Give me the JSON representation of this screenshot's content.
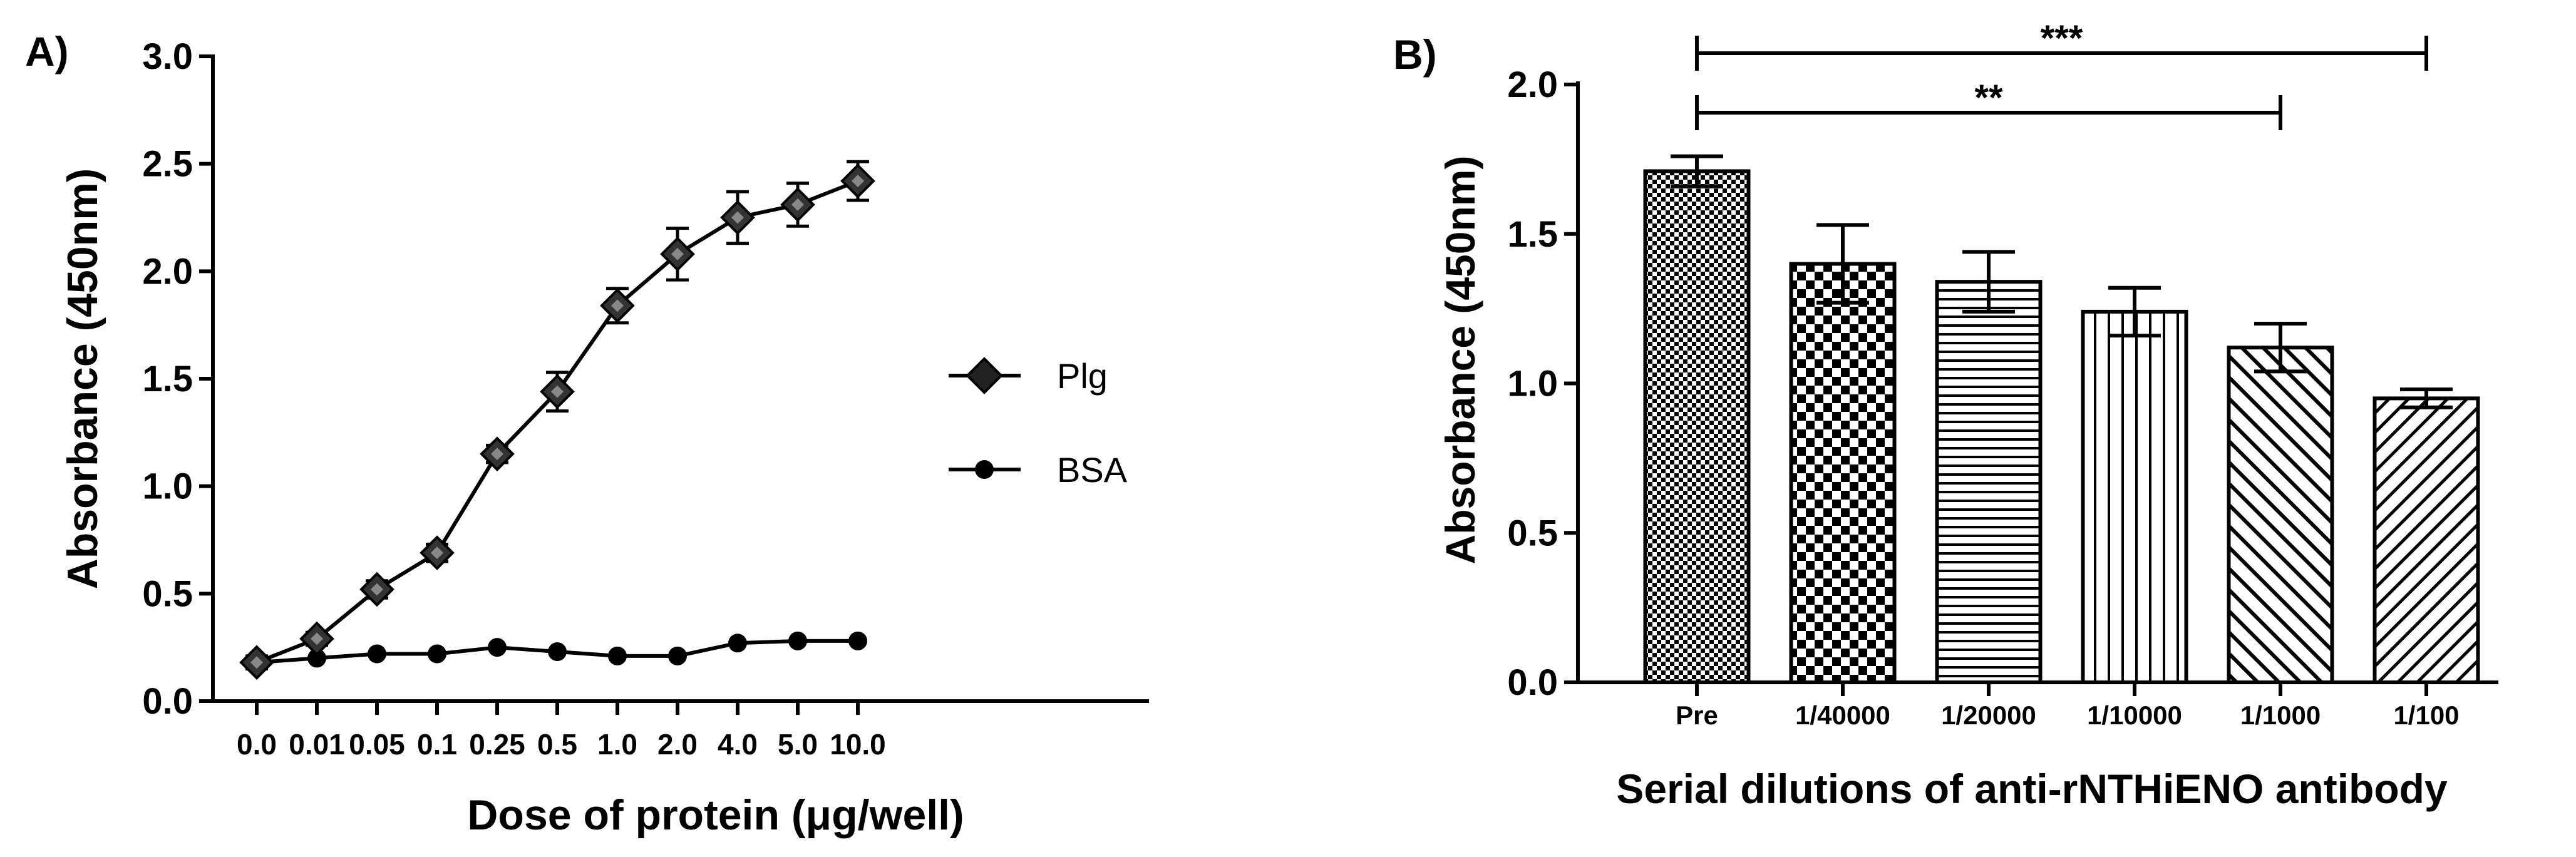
{
  "chart_data": [
    {
      "panel_label": "A)",
      "type": "line",
      "categories": [
        "0.0",
        "0.01",
        "0.05",
        "0.1",
        "0.25",
        "0.5",
        "1.0",
        "2.0",
        "4.0",
        "5.0",
        "10.0"
      ],
      "series": [
        {
          "name": "Plg",
          "marker": "diamond",
          "values": [
            0.18,
            0.29,
            0.52,
            0.69,
            1.15,
            1.44,
            1.84,
            2.08,
            2.25,
            2.31,
            2.42
          ],
          "errors": [
            0.03,
            0.03,
            0.04,
            0.04,
            0.04,
            0.09,
            0.08,
            0.12,
            0.12,
            0.1,
            0.09
          ]
        },
        {
          "name": "BSA",
          "marker": "circle",
          "values": [
            0.18,
            0.2,
            0.22,
            0.22,
            0.25,
            0.23,
            0.21,
            0.21,
            0.27,
            0.28,
            0.28
          ],
          "errors": [
            0,
            0,
            0,
            0,
            0,
            0,
            0,
            0,
            0,
            0,
            0
          ]
        }
      ],
      "xlabel": "Dose of protein (μg/well)",
      "ylabel": "Absorbance (450nm)",
      "ylim": [
        0,
        3.0
      ],
      "yticks": [
        "0.0",
        "0.5",
        "1.0",
        "1.5",
        "2.0",
        "2.5",
        "3.0"
      ],
      "legend_position": "center-right"
    },
    {
      "panel_label": "B)",
      "type": "bar",
      "categories": [
        "Pre",
        "1/40000",
        "1/20000",
        "1/10000",
        "1/1000",
        "1/100"
      ],
      "values": [
        1.71,
        1.4,
        1.34,
        1.24,
        1.12,
        0.95
      ],
      "errors": [
        0.05,
        0.13,
        0.1,
        0.08,
        0.08,
        0.03
      ],
      "patterns": [
        "fine-checker",
        "coarse-checker",
        "horizontal-lines",
        "vertical-lines",
        "diagonal-left",
        "diagonal-right"
      ],
      "xlabel": "Serial dilutions of anti-rNTHiENO antibody",
      "ylabel": "Absorbance (450nm)",
      "ylim": [
        0,
        2.0
      ],
      "yticks": [
        "0.0",
        "0.5",
        "1.0",
        "1.5",
        "2.0"
      ],
      "significance": [
        {
          "from": "Pre",
          "to": "1/100",
          "label": "***"
        },
        {
          "from": "Pre",
          "to": "1/1000",
          "label": "**"
        }
      ]
    }
  ]
}
